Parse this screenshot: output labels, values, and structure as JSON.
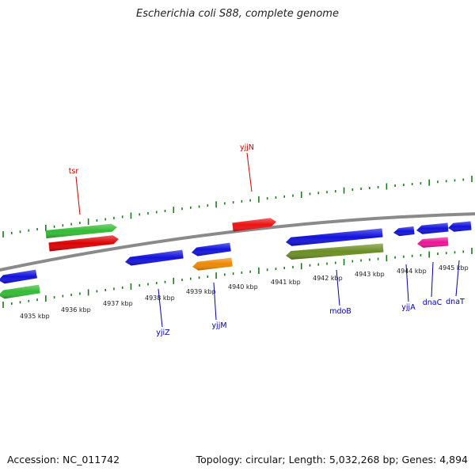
{
  "title": "Escherichia coli S88, complete genome",
  "footer": {
    "accession": "Accession: NC_011742",
    "summary": "Topology: circular; Length: 5,032,268 bp; Genes: 4,894"
  },
  "colors": {
    "backbone": "#8a8a8a",
    "tick": "#1a7a1a",
    "label_forward": "#cc0000",
    "label_reverse": "#0000aa"
  },
  "axis": {
    "tick_labels": [
      "4935 kbp",
      "4936 kbp",
      "4937 kbp",
      "4938 kbp",
      "4939 kbp",
      "4940 kbp",
      "4941 kbp",
      "4942 kbp",
      "4943 kbp",
      "4944 kbp",
      "4945 kbp"
    ]
  },
  "genes": [
    {
      "name": "tsr",
      "color": "#dd0000",
      "strand": "forward",
      "track": "red"
    },
    {
      "name": "",
      "color": "#33bb33",
      "strand": "forward",
      "track": "green"
    },
    {
      "name": "yjjN",
      "color": "#ee1111",
      "strand": "forward",
      "track": "red"
    },
    {
      "name": "",
      "color": "#1111dd",
      "strand": "reverse",
      "track": "blue"
    },
    {
      "name": "",
      "color": "#33bb33",
      "strand": "reverse",
      "track": "green"
    },
    {
      "name": "yjiZ",
      "color": "#1111dd",
      "strand": "reverse",
      "track": "blue"
    },
    {
      "name": "yjjM",
      "color": "#1111dd",
      "strand": "reverse",
      "track": "blue"
    },
    {
      "name": "",
      "color": "#ee8800",
      "strand": "reverse",
      "track": "orange"
    },
    {
      "name": "mdoB",
      "color": "#1111dd",
      "strand": "reverse",
      "track": "blue"
    },
    {
      "name": "",
      "color": "#6b8e23",
      "strand": "reverse",
      "track": "olive"
    },
    {
      "name": "yjjA",
      "color": "#1111dd",
      "strand": "reverse",
      "track": "blue"
    },
    {
      "name": "dnaC",
      "color": "#1111dd",
      "strand": "reverse",
      "track": "blue"
    },
    {
      "name": "",
      "color": "#ee1199",
      "strand": "reverse",
      "track": "pink"
    },
    {
      "name": "dnaT",
      "color": "#1111dd",
      "strand": "reverse",
      "track": "blue"
    }
  ]
}
